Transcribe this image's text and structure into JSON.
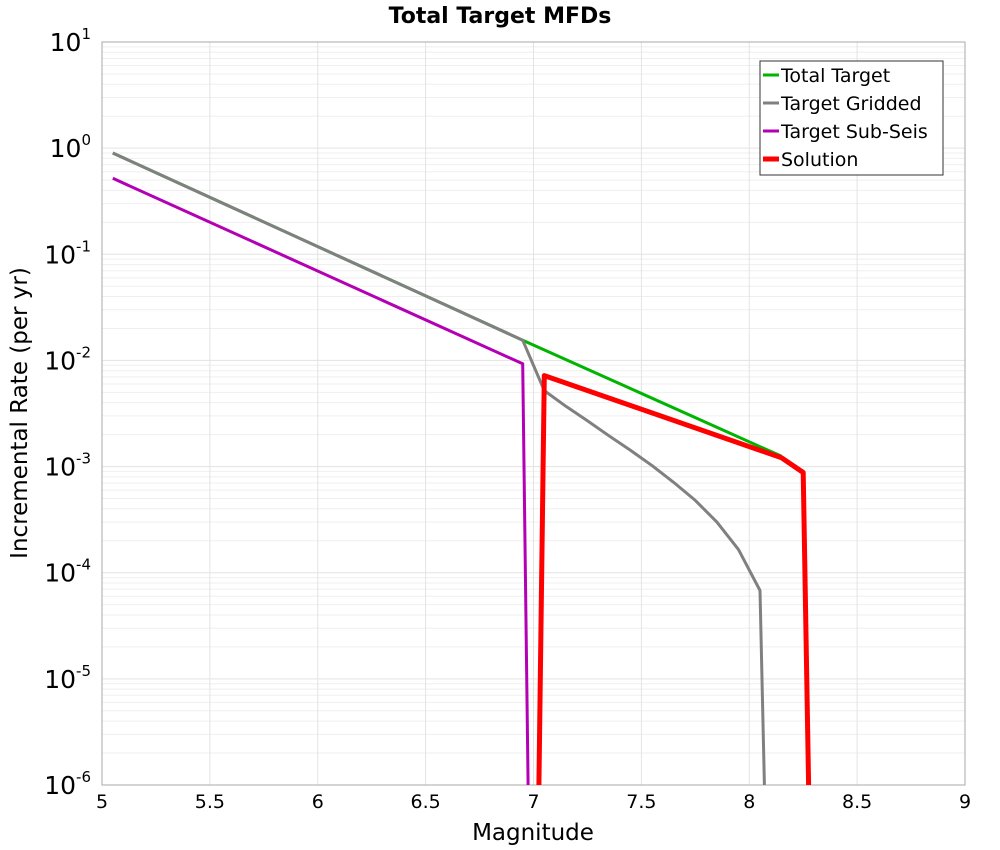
{
  "chart_data": {
    "type": "line",
    "title": "Total Target MFDs",
    "xlabel": "Magnitude",
    "ylabel": "Incremental Rate (per yr)",
    "xlim": [
      5,
      9
    ],
    "ylim": [
      1e-06,
      10
    ],
    "yscale": "log",
    "x_ticks": [
      "5",
      "5.5",
      "6",
      "6.5",
      "7",
      "7.5",
      "8",
      "8.5",
      "9"
    ],
    "y_ticks": [
      {
        "base": "10",
        "exp": "-6"
      },
      {
        "base": "10",
        "exp": "-5"
      },
      {
        "base": "10",
        "exp": "-4"
      },
      {
        "base": "10",
        "exp": "-3"
      },
      {
        "base": "10",
        "exp": "-2"
      },
      {
        "base": "10",
        "exp": "-1"
      },
      {
        "base": "10",
        "exp": "0"
      },
      {
        "base": "10",
        "exp": "1"
      }
    ],
    "legend_position": "top-right",
    "grid": true,
    "series": [
      {
        "name": "Total Target",
        "color": "#00b400",
        "width": "normal",
        "points": [
          [
            5.05,
            0.9
          ],
          [
            6.95,
            0.0155
          ],
          [
            8.15,
            0.00125
          ]
        ]
      },
      {
        "name": "Target Gridded",
        "color": "#808080",
        "width": "normal",
        "points": [
          [
            5.05,
            0.9
          ],
          [
            6.95,
            0.0155
          ],
          [
            7.05,
            0.0052
          ],
          [
            7.15,
            0.0037
          ],
          [
            7.25,
            0.0027
          ],
          [
            7.35,
            0.00195
          ],
          [
            7.45,
            0.00142
          ],
          [
            7.55,
            0.00102
          ],
          [
            7.65,
            0.00071
          ],
          [
            7.75,
            0.00048
          ],
          [
            7.85,
            0.0003
          ],
          [
            7.95,
            0.000165
          ],
          [
            8.05,
            6.8e-05
          ],
          [
            8.07,
            1e-06
          ]
        ]
      },
      {
        "name": "Target Sub-Seis",
        "color": "#b400b4",
        "width": "normal",
        "points": [
          [
            5.05,
            0.52
          ],
          [
            6.95,
            0.0093
          ],
          [
            6.975,
            1e-06
          ]
        ]
      },
      {
        "name": "Solution",
        "color": "#ff0000",
        "width": "thick",
        "points": [
          [
            7.025,
            1e-06
          ],
          [
            7.05,
            0.0072
          ],
          [
            8.15,
            0.00121
          ],
          [
            8.25,
            0.00088
          ],
          [
            8.275,
            1e-06
          ]
        ]
      }
    ]
  }
}
